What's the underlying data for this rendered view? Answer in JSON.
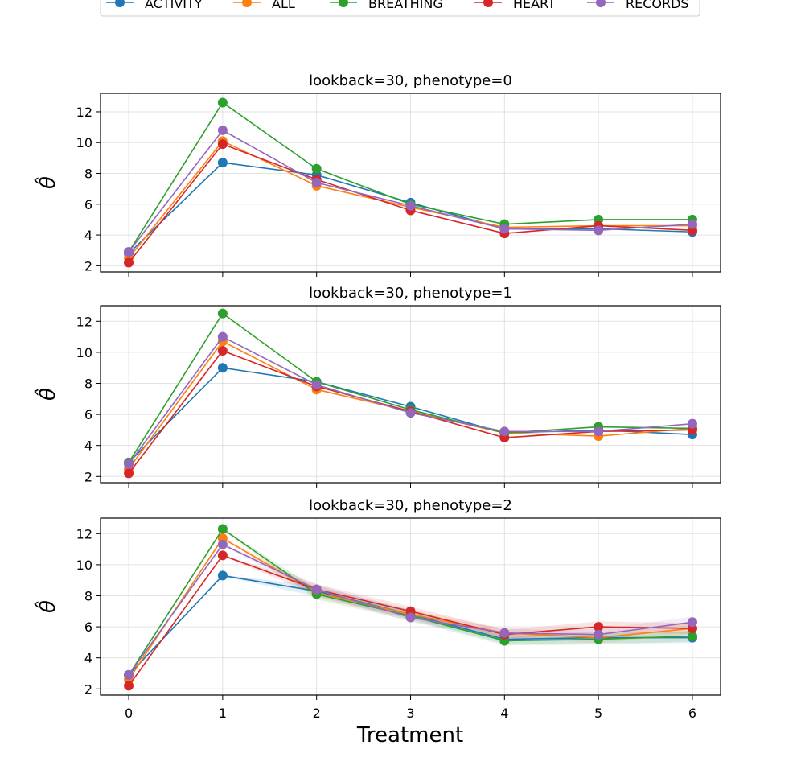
{
  "figure": {
    "xlabel": "Treatment",
    "ylabel": "θ̂"
  },
  "legend": [
    {
      "name": "ACTIVITY",
      "color": "#1f77b4"
    },
    {
      "name": "ALL",
      "color": "#ff7f0e"
    },
    {
      "name": "BREATHING",
      "color": "#2ca02c"
    },
    {
      "name": "HEART",
      "color": "#d62728"
    },
    {
      "name": "RECORDS",
      "color": "#9467bd"
    }
  ],
  "chart_data": [
    {
      "type": "line",
      "title": "lookback=30, phenotype=0",
      "xlabel": "",
      "ylabel": "θ̂",
      "x": [
        0,
        1,
        2,
        3,
        4,
        5,
        6
      ],
      "xlim": [
        -0.3,
        6.3
      ],
      "ylim": [
        1.6,
        13.2
      ],
      "yticks": [
        2,
        4,
        6,
        8,
        10,
        12
      ],
      "grid": true,
      "series": [
        {
          "name": "ACTIVITY",
          "color": "#1f77b4",
          "values": [
            2.8,
            8.7,
            7.9,
            6.1,
            4.4,
            4.4,
            4.2
          ]
        },
        {
          "name": "ALL",
          "color": "#ff7f0e",
          "values": [
            2.5,
            10.1,
            7.2,
            5.8,
            4.5,
            4.6,
            4.6
          ]
        },
        {
          "name": "BREATHING",
          "color": "#2ca02c",
          "values": [
            2.9,
            12.6,
            8.3,
            6.0,
            4.7,
            5.0,
            5.0
          ]
        },
        {
          "name": "HEART",
          "color": "#d62728",
          "values": [
            2.2,
            9.9,
            7.6,
            5.6,
            4.1,
            4.6,
            4.3
          ]
        },
        {
          "name": "RECORDS",
          "color": "#9467bd",
          "values": [
            2.9,
            10.8,
            7.4,
            5.9,
            4.4,
            4.3,
            4.7
          ]
        }
      ]
    },
    {
      "type": "line",
      "title": "lookback=30, phenotype=1",
      "xlabel": "",
      "ylabel": "θ̂",
      "x": [
        0,
        1,
        2,
        3,
        4,
        5,
        6
      ],
      "xlim": [
        -0.3,
        6.3
      ],
      "ylim": [
        1.6,
        13.0
      ],
      "yticks": [
        2,
        4,
        6,
        8,
        10,
        12
      ],
      "grid": true,
      "series": [
        {
          "name": "ACTIVITY",
          "color": "#1f77b4",
          "values": [
            2.9,
            9.0,
            8.1,
            6.5,
            4.8,
            5.0,
            4.7
          ]
        },
        {
          "name": "ALL",
          "color": "#ff7f0e",
          "values": [
            2.5,
            10.7,
            7.6,
            6.2,
            4.8,
            4.6,
            5.1
          ]
        },
        {
          "name": "BREATHING",
          "color": "#2ca02c",
          "values": [
            2.9,
            12.5,
            8.1,
            6.3,
            4.8,
            5.2,
            5.1
          ]
        },
        {
          "name": "HEART",
          "color": "#d62728",
          "values": [
            2.2,
            10.1,
            7.8,
            6.2,
            4.5,
            4.9,
            5.0
          ]
        },
        {
          "name": "RECORDS",
          "color": "#9467bd",
          "values": [
            2.8,
            11.0,
            7.9,
            6.1,
            4.9,
            4.9,
            5.4
          ]
        }
      ]
    },
    {
      "type": "line",
      "title": "lookback=30, phenotype=2",
      "xlabel": "Treatment",
      "ylabel": "θ̂",
      "x": [
        0,
        1,
        2,
        3,
        4,
        5,
        6
      ],
      "xlim": [
        -0.3,
        6.3
      ],
      "ylim": [
        1.6,
        13.0
      ],
      "yticks": [
        2,
        4,
        6,
        8,
        10,
        12
      ],
      "xticks": [
        0,
        1,
        2,
        3,
        4,
        5,
        6
      ],
      "grid": true,
      "series": [
        {
          "name": "ACTIVITY",
          "color": "#1f77b4",
          "values": [
            2.9,
            9.3,
            8.3,
            6.8,
            5.2,
            5.3,
            5.3
          ]
        },
        {
          "name": "ALL",
          "color": "#ff7f0e",
          "values": [
            2.6,
            11.7,
            8.2,
            6.8,
            5.6,
            5.3,
            5.9
          ]
        },
        {
          "name": "BREATHING",
          "color": "#2ca02c",
          "values": [
            2.9,
            12.3,
            8.1,
            6.7,
            5.1,
            5.2,
            5.4
          ]
        },
        {
          "name": "HEART",
          "color": "#d62728",
          "values": [
            2.2,
            10.6,
            8.4,
            7.0,
            5.5,
            6.0,
            5.9
          ]
        },
        {
          "name": "RECORDS",
          "color": "#9467bd",
          "values": [
            2.9,
            11.3,
            8.4,
            6.6,
            5.6,
            5.5,
            6.3
          ]
        }
      ]
    }
  ]
}
